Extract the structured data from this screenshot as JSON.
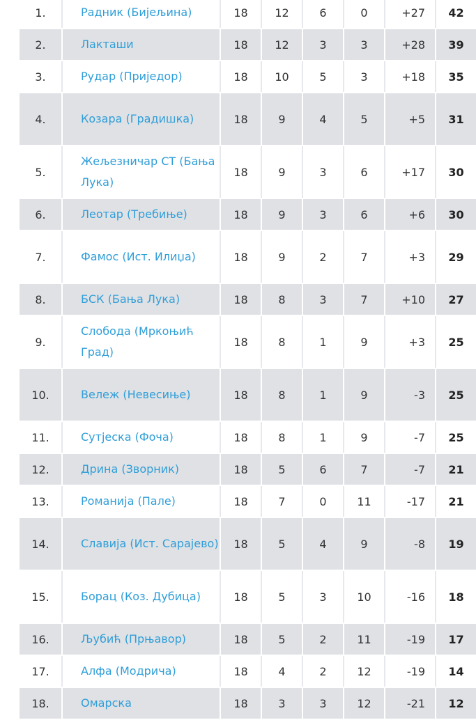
{
  "standings": {
    "rows": [
      {
        "pos": "1.",
        "team": "Радник (Бијељина)",
        "played": "18",
        "won": "12",
        "drawn": "6",
        "lost": "0",
        "gd": "+27",
        "pts": "42"
      },
      {
        "pos": "2.",
        "team": "Лакташи",
        "played": "18",
        "won": "12",
        "drawn": "3",
        "lost": "3",
        "gd": "+28",
        "pts": "39"
      },
      {
        "pos": "3.",
        "team": "Рудар (Приједор)",
        "played": "18",
        "won": "10",
        "drawn": "5",
        "lost": "3",
        "gd": "+18",
        "pts": "35"
      },
      {
        "pos": "4.",
        "team": "Козара (Градишка)",
        "played": "18",
        "won": "9",
        "drawn": "4",
        "lost": "5",
        "gd": "+5",
        "pts": "31"
      },
      {
        "pos": "5.",
        "team": "Жељезничар СТ (Бања Лука)",
        "played": "18",
        "won": "9",
        "drawn": "3",
        "lost": "6",
        "gd": "+17",
        "pts": "30"
      },
      {
        "pos": "6.",
        "team": "Леотар (Требиње)",
        "played": "18",
        "won": "9",
        "drawn": "3",
        "lost": "6",
        "gd": "+6",
        "pts": "30"
      },
      {
        "pos": "7.",
        "team": "Фамос (Ист. Илиџа)",
        "played": "18",
        "won": "9",
        "drawn": "2",
        "lost": "7",
        "gd": "+3",
        "pts": "29"
      },
      {
        "pos": "8.",
        "team": "БСК (Бања Лука)",
        "played": "18",
        "won": "8",
        "drawn": "3",
        "lost": "7",
        "gd": "+10",
        "pts": "27"
      },
      {
        "pos": "9.",
        "team": "Слобода (Мркоњић Град)",
        "played": "18",
        "won": "8",
        "drawn": "1",
        "lost": "9",
        "gd": "+3",
        "pts": "25"
      },
      {
        "pos": "10.",
        "team": "Вележ (Невесиње)",
        "played": "18",
        "won": "8",
        "drawn": "1",
        "lost": "9",
        "gd": "-3",
        "pts": "25"
      },
      {
        "pos": "11.",
        "team": "Сутјеска (Фоча)",
        "played": "18",
        "won": "8",
        "drawn": "1",
        "lost": "9",
        "gd": "-7",
        "pts": "25"
      },
      {
        "pos": "12.",
        "team": "Дрина (Зворник)",
        "played": "18",
        "won": "5",
        "drawn": "6",
        "lost": "7",
        "gd": "-7",
        "pts": "21"
      },
      {
        "pos": "13.",
        "team": "Романија (Пале)",
        "played": "18",
        "won": "7",
        "drawn": "0",
        "lost": "11",
        "gd": "-17",
        "pts": "21"
      },
      {
        "pos": "14.",
        "team": "Славија (Ист. Сарајево)",
        "played": "18",
        "won": "5",
        "drawn": "4",
        "lost": "9",
        "gd": "-8",
        "pts": "19"
      },
      {
        "pos": "15.",
        "team": "Борац (Коз. Дубица)",
        "played": "18",
        "won": "5",
        "drawn": "3",
        "lost": "10",
        "gd": "-16",
        "pts": "18"
      },
      {
        "pos": "16.",
        "team": "Љубић (Прњавор)",
        "played": "18",
        "won": "5",
        "drawn": "2",
        "lost": "11",
        "gd": "-19",
        "pts": "17"
      },
      {
        "pos": "17.",
        "team": "Алфа (Модрича)",
        "played": "18",
        "won": "4",
        "drawn": "2",
        "lost": "12",
        "gd": "-19",
        "pts": "14"
      },
      {
        "pos": "18.",
        "team": "Омарска",
        "played": "18",
        "won": "3",
        "drawn": "3",
        "lost": "12",
        "gd": "-21",
        "pts": "12"
      }
    ]
  }
}
